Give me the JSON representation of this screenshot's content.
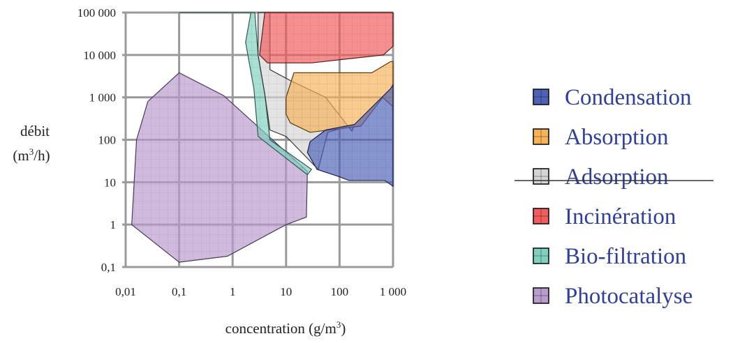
{
  "chart_data": {
    "type": "area",
    "xlabel": "concentration (g/m",
    "xlabel_sup": "3",
    "xlabel_end": ")",
    "ylabel_line1": "débit",
    "ylabel_line2": "(m",
    "ylabel_sup": "3",
    "ylabel_end": "/h)",
    "x_scale": "log",
    "y_scale": "log",
    "xlim": [
      0.01,
      1000
    ],
    "ylim": [
      0.1,
      100000
    ],
    "x_ticks": [
      "0,01",
      "0,1",
      "1",
      "10",
      "100",
      "1 000"
    ],
    "y_ticks": [
      "0,1",
      "1",
      "10",
      "100",
      "1 000",
      "10 000",
      "100 000"
    ],
    "grid": true,
    "legend_position": "right",
    "series": [
      {
        "name": "Photocatalyse",
        "color": "#b99bd0",
        "stroke": "#4a3a5a",
        "points": [
          [
            0.013,
            1
          ],
          [
            0.016,
            100
          ],
          [
            0.026,
            800
          ],
          [
            0.1,
            3800
          ],
          [
            0.68,
            1100
          ],
          [
            25,
            18
          ],
          [
            24,
            1.5
          ],
          [
            10,
            1
          ],
          [
            0.8,
            0.18
          ],
          [
            0.1,
            0.13
          ],
          [
            0.013,
            1
          ]
        ]
      },
      {
        "name": "Bio-filtration",
        "color": "#7fd1bf",
        "stroke": "#2f5a52",
        "points": [
          [
            0.1,
            100000
          ],
          [
            2.2,
            100000
          ],
          [
            1.75,
            20000
          ],
          [
            2.5,
            1600
          ],
          [
            3,
            120
          ],
          [
            25,
            15
          ],
          [
            30,
            20
          ],
          [
            5,
            100
          ],
          [
            4,
            1200
          ],
          [
            3,
            10000
          ],
          [
            2.6,
            100000
          ]
        ]
      },
      {
        "name": "Adsorption",
        "color": "#d5d5d5",
        "stroke": "#333333",
        "points": [
          [
            3,
            100000
          ],
          [
            5,
            100000
          ],
          [
            5,
            4500
          ],
          [
            12,
            2500
          ],
          [
            55,
            1000
          ],
          [
            170,
            160
          ],
          [
            190,
            230
          ],
          [
            60,
            150
          ],
          [
            40,
            20
          ],
          [
            10,
            120
          ],
          [
            5,
            170
          ],
          [
            4,
            1200
          ],
          [
            3,
            10000
          ]
        ]
      },
      {
        "name": "Incinération",
        "color": "#f25c5c",
        "stroke": "#5a1a1a",
        "points": [
          [
            4,
            100000
          ],
          [
            1000,
            100000
          ],
          [
            1000,
            16000
          ],
          [
            660,
            10000
          ],
          [
            30,
            6500
          ],
          [
            4.5,
            6500
          ],
          [
            3.2,
            10000
          ]
        ]
      },
      {
        "name": "Absorption",
        "color": "#f8b258",
        "stroke": "#5a3a10",
        "points": [
          [
            10,
            1000
          ],
          [
            14,
            3800
          ],
          [
            400,
            3800
          ],
          [
            900,
            7000
          ],
          [
            1000,
            7000
          ],
          [
            1000,
            600
          ],
          [
            640,
            1000
          ],
          [
            250,
            210
          ],
          [
            28,
            150
          ],
          [
            12,
            250
          ],
          [
            10,
            400
          ]
        ]
      },
      {
        "name": "Condensation",
        "color": "#4d62b8",
        "stroke": "#1d2250",
        "points": [
          [
            28,
            90
          ],
          [
            55,
            170
          ],
          [
            190,
            230
          ],
          [
            900,
            1600
          ],
          [
            1000,
            2000
          ],
          [
            1000,
            8
          ],
          [
            700,
            11
          ],
          [
            150,
            11
          ],
          [
            90,
            14
          ],
          [
            38,
            20
          ],
          [
            25,
            50
          ]
        ]
      }
    ],
    "legend_order": [
      "Condensation",
      "Absorption",
      "Adsorption",
      "Incinération",
      "Bio-filtration",
      "Photocatalyse"
    ]
  }
}
